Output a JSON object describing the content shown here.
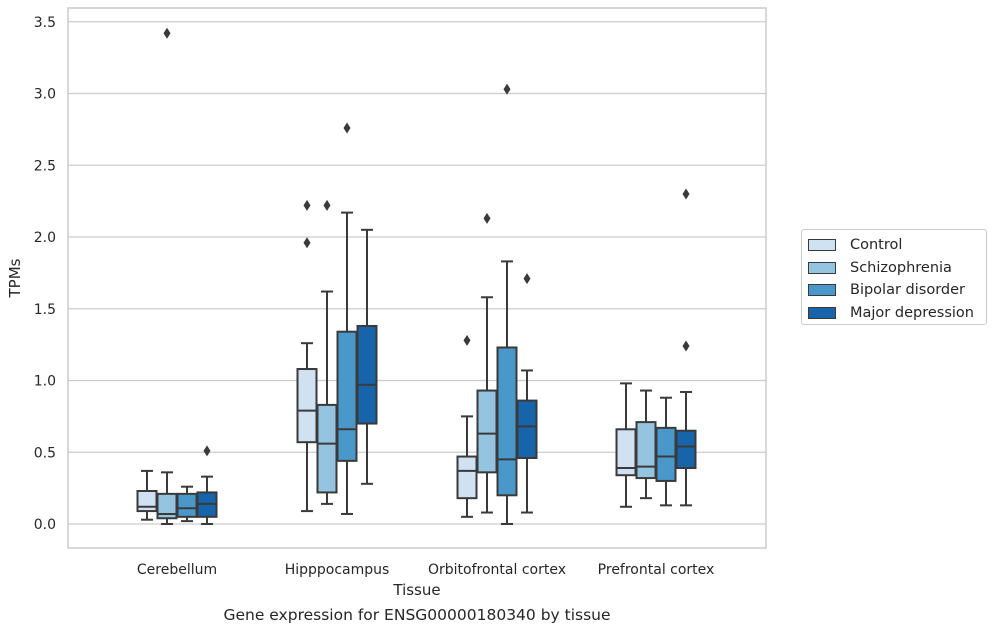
{
  "chart_data": {
    "type": "box",
    "title": "",
    "caption": "Gene expression for ENSG00000180340 by tissue",
    "xlabel": "Tissue",
    "ylabel": "TPMs",
    "ylim": [
      -0.17,
      3.6
    ],
    "yticks": [
      "0.0",
      "0.5",
      "1.0",
      "1.5",
      "2.0",
      "2.5",
      "3.0",
      "3.5"
    ],
    "ytick_values": [
      0,
      0.5,
      1,
      1.5,
      2,
      2.5,
      3,
      3.5
    ],
    "grid": "horizontal",
    "legend_position": "right",
    "categories": [
      "Cerebellum",
      "Hipppocampus",
      "Orbitofrontal cortex",
      "Prefrontal cortex"
    ],
    "series": [
      {
        "name": "Control",
        "color": "#d0e1f2",
        "boxes": [
          {
            "whisker_low": 0.03,
            "q1": 0.09,
            "median": 0.12,
            "q3": 0.23,
            "whisker_high": 0.37,
            "outliers": []
          },
          {
            "whisker_low": 0.09,
            "q1": 0.57,
            "median": 0.79,
            "q3": 1.08,
            "whisker_high": 1.26,
            "outliers": [
              1.96,
              2.22
            ]
          },
          {
            "whisker_low": 0.05,
            "q1": 0.18,
            "median": 0.37,
            "q3": 0.47,
            "whisker_high": 0.75,
            "outliers": [
              1.28
            ]
          },
          {
            "whisker_low": 0.12,
            "q1": 0.34,
            "median": 0.39,
            "q3": 0.66,
            "whisker_high": 0.98,
            "outliers": []
          }
        ]
      },
      {
        "name": "Schizophrenia",
        "color": "#94c4df",
        "boxes": [
          {
            "whisker_low": 0.0,
            "q1": 0.04,
            "median": 0.07,
            "q3": 0.21,
            "whisker_high": 0.36,
            "outliers": [
              3.42
            ]
          },
          {
            "whisker_low": 0.14,
            "q1": 0.22,
            "median": 0.56,
            "q3": 0.83,
            "whisker_high": 1.62,
            "outliers": [
              2.22
            ]
          },
          {
            "whisker_low": 0.08,
            "q1": 0.36,
            "median": 0.63,
            "q3": 0.93,
            "whisker_high": 1.58,
            "outliers": [
              2.13
            ]
          },
          {
            "whisker_low": 0.18,
            "q1": 0.32,
            "median": 0.4,
            "q3": 0.71,
            "whisker_high": 0.93,
            "outliers": []
          }
        ]
      },
      {
        "name": "Bipolar disorder",
        "color": "#4a98c9",
        "boxes": [
          {
            "whisker_low": 0.02,
            "q1": 0.05,
            "median": 0.11,
            "q3": 0.21,
            "whisker_high": 0.26,
            "outliers": []
          },
          {
            "whisker_low": 0.07,
            "q1": 0.44,
            "median": 0.66,
            "q3": 1.34,
            "whisker_high": 2.17,
            "outliers": [
              2.76
            ]
          },
          {
            "whisker_low": 0.0,
            "q1": 0.2,
            "median": 0.45,
            "q3": 1.23,
            "whisker_high": 1.83,
            "outliers": [
              3.03
            ]
          },
          {
            "whisker_low": 0.13,
            "q1": 0.3,
            "median": 0.47,
            "q3": 0.67,
            "whisker_high": 0.88,
            "outliers": []
          }
        ]
      },
      {
        "name": "Major depression",
        "color": "#1764ab",
        "boxes": [
          {
            "whisker_low": 0.0,
            "q1": 0.05,
            "median": 0.14,
            "q3": 0.22,
            "whisker_high": 0.33,
            "outliers": [
              0.51
            ]
          },
          {
            "whisker_low": 0.28,
            "q1": 0.7,
            "median": 0.97,
            "q3": 1.38,
            "whisker_high": 2.05,
            "outliers": []
          },
          {
            "whisker_low": 0.08,
            "q1": 0.46,
            "median": 0.68,
            "q3": 0.86,
            "whisker_high": 1.07,
            "outliers": [
              1.71
            ]
          },
          {
            "whisker_low": 0.13,
            "q1": 0.39,
            "median": 0.54,
            "q3": 0.65,
            "whisker_high": 0.92,
            "outliers": [
              1.24,
              2.3
            ]
          }
        ]
      }
    ]
  }
}
